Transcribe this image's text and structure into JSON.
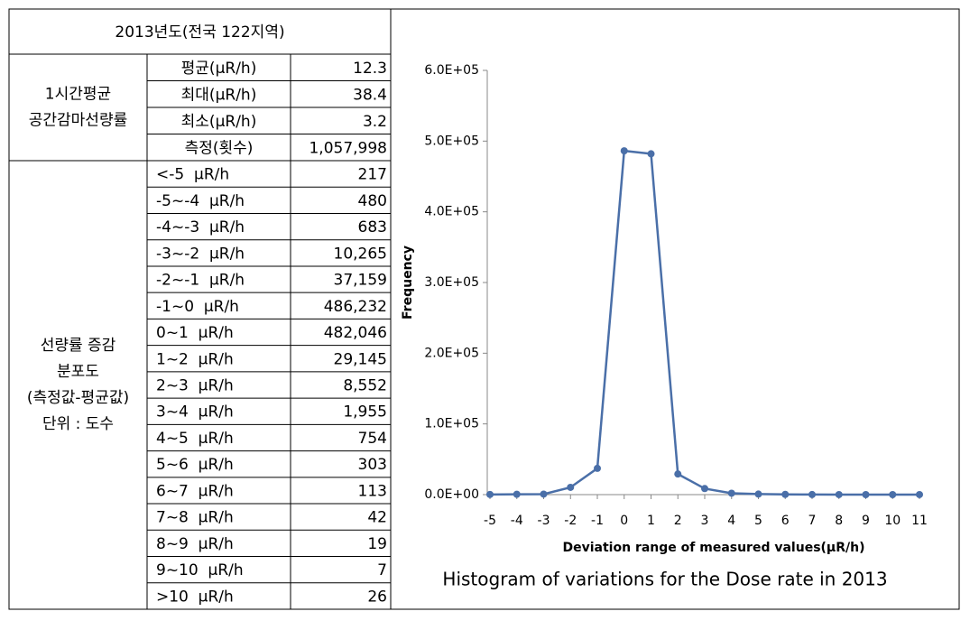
{
  "table": {
    "header": "2013년도(전국 122지역)",
    "groups": [
      {
        "label": [
          "1시간평균",
          "공간감마선량률"
        ],
        "rows": [
          [
            "평균(μR/h)",
            "12.3"
          ],
          [
            "최대(μR/h)",
            "38.4"
          ],
          [
            "최소(μR/h)",
            "3.2"
          ],
          [
            "측정(횟수)",
            "1,057,998"
          ]
        ]
      },
      {
        "label": [
          "선량률 증감",
          "분포도",
          "(측정값-평균값)",
          "단위 : 도수"
        ],
        "rows": [
          [
            "<-5  μR/h",
            "217"
          ],
          [
            "-5~-4  μR/h",
            "480"
          ],
          [
            "-4~-3  μR/h",
            "683"
          ],
          [
            "-3~-2  μR/h",
            "10,265"
          ],
          [
            "-2~-1  μR/h",
            "37,159"
          ],
          [
            "-1~0  μR/h",
            "486,232"
          ],
          [
            "0~1  μR/h",
            "482,046"
          ],
          [
            "1~2  μR/h",
            "29,145"
          ],
          [
            "2~3  μR/h",
            "8,552"
          ],
          [
            "3~4  μR/h",
            "1,955"
          ],
          [
            "4~5  μR/h",
            "754"
          ],
          [
            "5~6  μR/h",
            "303"
          ],
          [
            "6~7  μR/h",
            "113"
          ],
          [
            "7~8  μR/h",
            "42"
          ],
          [
            "8~9  μR/h",
            "19"
          ],
          [
            "9~10  μR/h",
            "7"
          ],
          [
            ">10  μR/h",
            "26"
          ]
        ]
      }
    ]
  },
  "chart_data": {
    "type": "line",
    "title": "Histogram of variations for the Dose rate in 2013",
    "x_label": "Deviation range of measured values(μR/h)",
    "y_label": "Frequency",
    "x": [
      -5,
      -4,
      -3,
      -2,
      -1,
      0,
      1,
      2,
      3,
      4,
      5,
      6,
      7,
      8,
      9,
      10,
      11
    ],
    "series": [
      {
        "color": "#4a6fa8",
        "values": [
          217,
          480,
          683,
          10265,
          37159,
          486232,
          482046,
          29145,
          8552,
          1955,
          754,
          303,
          113,
          42,
          19,
          7,
          26
        ]
      }
    ],
    "xlim": [
      -5,
      11
    ],
    "xticks": [
      -5,
      -4,
      -3,
      -2,
      -1,
      0,
      1,
      2,
      3,
      4,
      5,
      6,
      7,
      8,
      9,
      10,
      11
    ],
    "ylim": [
      0,
      600000
    ],
    "yticks": [
      {
        "value": 0,
        "label": "0.0E+00"
      },
      {
        "value": 100000,
        "label": "1.0E+05"
      },
      {
        "value": 200000,
        "label": "2.0E+05"
      },
      {
        "value": 300000,
        "label": "3.0E+05"
      },
      {
        "value": 400000,
        "label": "4.0E+05"
      },
      {
        "value": 500000,
        "label": "5.0E+05"
      },
      {
        "value": 600000,
        "label": "6.0E+05"
      }
    ],
    "grid": false
  }
}
